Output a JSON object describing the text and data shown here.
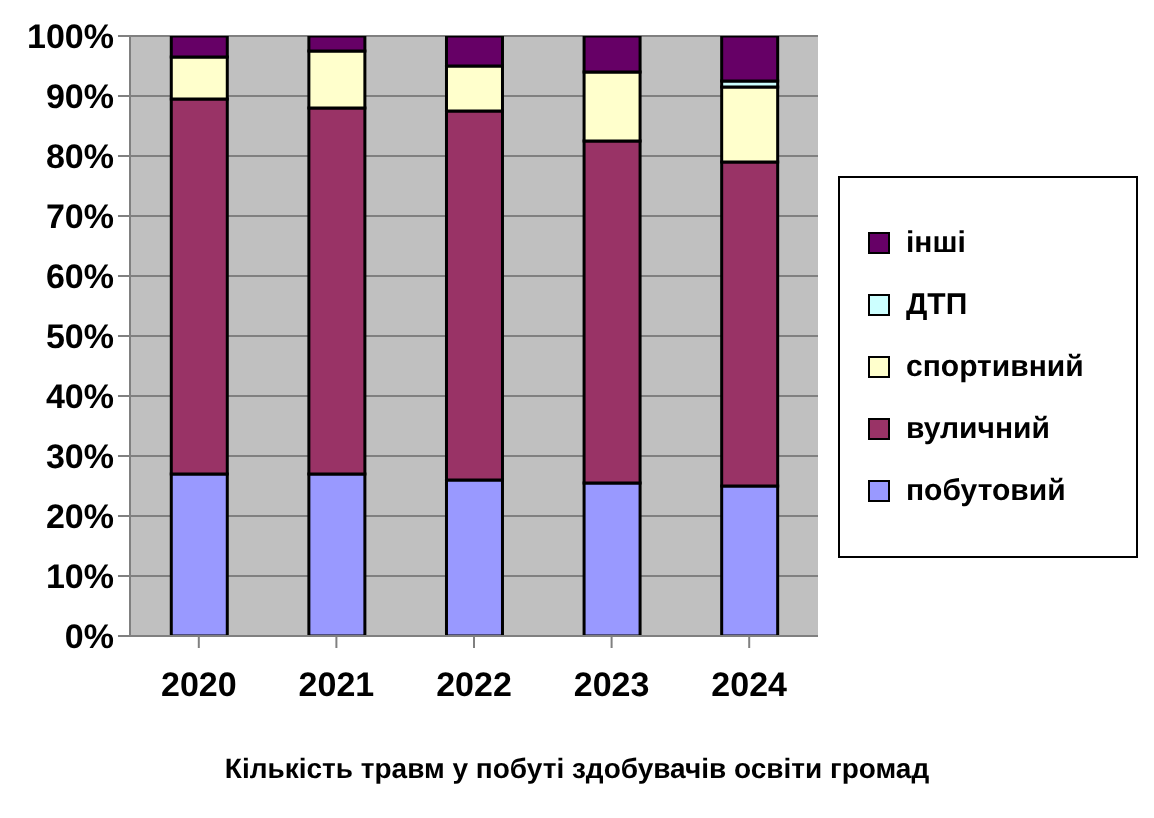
{
  "chart_data": {
    "type": "bar",
    "stacked": true,
    "xlabel": "Кількість травм у побуті здобувачів освіти громад",
    "categories": [
      "2020",
      "2021",
      "2022",
      "2023",
      "2024"
    ],
    "series": [
      {
        "name": "побутовий",
        "color": "#9999ff",
        "values": [
          27,
          27,
          26,
          25.5,
          25
        ]
      },
      {
        "name": "вуличний",
        "color": "#993366",
        "values": [
          62.5,
          61,
          61.5,
          57,
          54
        ]
      },
      {
        "name": "спортивний",
        "color": "#ffffcc",
        "values": [
          7,
          9.5,
          7.5,
          11.5,
          12.5
        ]
      },
      {
        "name": "ДТП",
        "color": "#ccffff",
        "values": [
          null,
          null,
          null,
          0,
          1
        ]
      },
      {
        "name": "інші",
        "color": "#660066",
        "values": [
          3.5,
          2.5,
          5,
          6,
          7.5
        ]
      }
    ],
    "ylim": [
      0,
      100
    ],
    "yticks": [
      {
        "value": 0,
        "label": "0%"
      },
      {
        "value": 10,
        "label": "10%"
      },
      {
        "value": 20,
        "label": "20%"
      },
      {
        "value": 30,
        "label": "30%"
      },
      {
        "value": 40,
        "label": "40%"
      },
      {
        "value": 50,
        "label": "50%"
      },
      {
        "value": 60,
        "label": "60%"
      },
      {
        "value": 70,
        "label": "70%"
      },
      {
        "value": 80,
        "label": "80%"
      },
      {
        "value": 90,
        "label": "90%"
      },
      {
        "value": 100,
        "label": "100%"
      }
    ],
    "grid": "y",
    "legend": "right"
  }
}
